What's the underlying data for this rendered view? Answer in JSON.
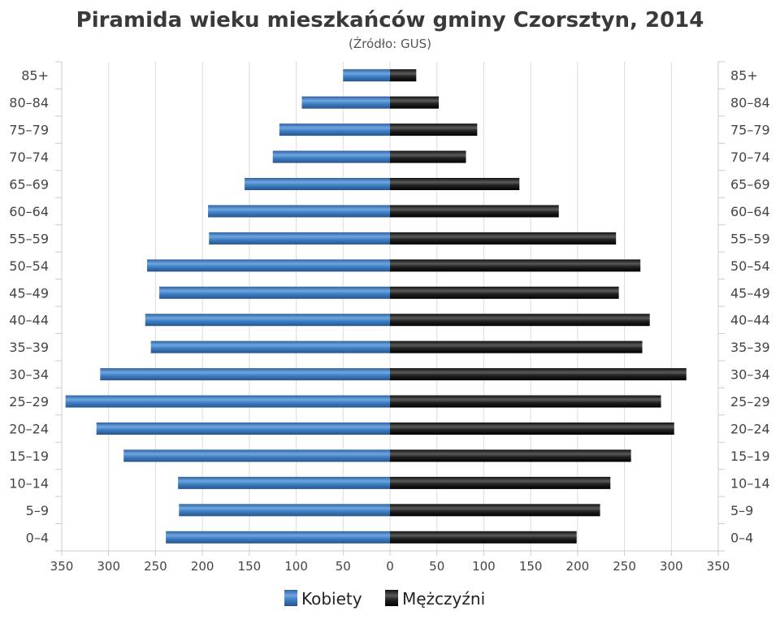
{
  "chart_data": {
    "type": "bar",
    "orientation": "horizontal",
    "layout": "population-pyramid",
    "title": "Piramida wieku mieszkańców gminy Czorsztyn, 2014",
    "subtitle": "(Źródło: GUS)",
    "categories": [
      "85+",
      "80–84",
      "75–79",
      "70–74",
      "65–69",
      "60–64",
      "55–59",
      "50–54",
      "45–49",
      "40–44",
      "35–39",
      "30–34",
      "25–29",
      "20–24",
      "15–19",
      "10–14",
      "5–9",
      "0–4"
    ],
    "series": [
      {
        "name": "Kobiety",
        "color": "#3f7fc4",
        "side": "left",
        "values": [
          50,
          94,
          118,
          125,
          155,
          194,
          193,
          259,
          246,
          261,
          255,
          309,
          346,
          313,
          284,
          226,
          225,
          239
        ]
      },
      {
        "name": "Mężczyźni",
        "color": "#1a1a1a",
        "side": "right",
        "values": [
          28,
          52,
          93,
          81,
          138,
          180,
          241,
          267,
          244,
          277,
          269,
          316,
          289,
          303,
          257,
          235,
          224,
          199
        ]
      }
    ],
    "xlim": [
      -350,
      350
    ],
    "x_ticks": [
      -350,
      -300,
      -250,
      -200,
      -150,
      -100,
      -50,
      0,
      50,
      100,
      150,
      200,
      250,
      300,
      350
    ],
    "x_tick_labels": [
      "350",
      "300",
      "250",
      "200",
      "150",
      "100",
      "50",
      "0",
      "50",
      "100",
      "150",
      "200",
      "250",
      "300",
      "350"
    ],
    "grid": true,
    "legend": "bottom-center"
  }
}
